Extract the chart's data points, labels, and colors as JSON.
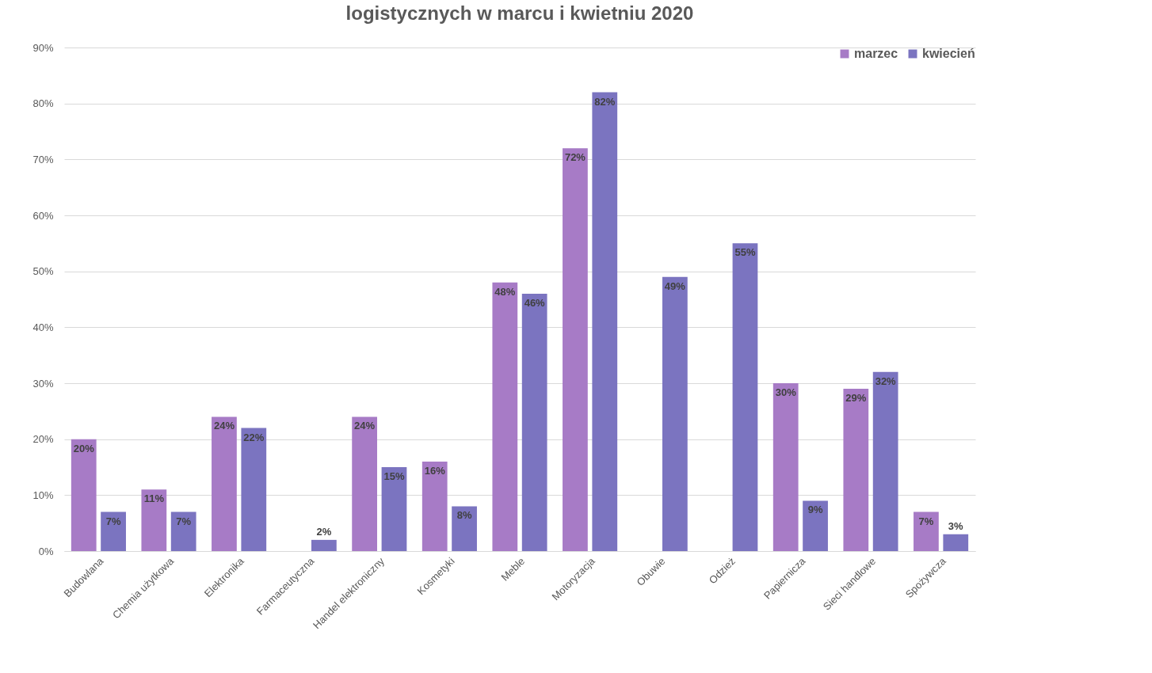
{
  "chart_data": {
    "type": "bar",
    "title": "logistycznych w marcu i kwietniu 2020",
    "categories": [
      "Budowlana",
      "Chemia użytkowa",
      "Elektronika",
      "Farmaceutyczna",
      "Handel elektroniczny",
      "Kosmetyki",
      "Meble",
      "Motoryzacja",
      "Obuwie",
      "Odzież",
      "Papiernicza",
      "Sieci handlowe",
      "Spożywcza"
    ],
    "series": [
      {
        "name": "marzec",
        "color": "#a77bc6",
        "values": [
          20,
          11,
          24,
          null,
          24,
          16,
          48,
          72,
          null,
          null,
          30,
          29,
          7
        ],
        "value_labels": [
          "20%",
          "11%",
          "24%",
          null,
          "24%",
          "16%",
          "48%",
          "72%",
          null,
          null,
          "30%",
          "29%",
          "7%"
        ]
      },
      {
        "name": "kwiecień",
        "color": "#7b74c0",
        "values": [
          7,
          7,
          22,
          2,
          15,
          8,
          46,
          82,
          49,
          55,
          9,
          32,
          3
        ],
        "value_labels": [
          "7%",
          "7%",
          "22%",
          "2%",
          "15%",
          "8%",
          "46%",
          "82%",
          "49%",
          "55%",
          "9%",
          "32%",
          "3%"
        ]
      }
    ],
    "ylim": [
      0,
      90
    ],
    "yticks": [
      {
        "value": 0,
        "label": "0%"
      },
      {
        "value": 10,
        "label": "10%"
      },
      {
        "value": 20,
        "label": "20%"
      },
      {
        "value": 30,
        "label": "30%"
      },
      {
        "value": 40,
        "label": "40%"
      },
      {
        "value": 50,
        "label": "50%"
      },
      {
        "value": 60,
        "label": "60%"
      },
      {
        "value": 70,
        "label": "70%"
      },
      {
        "value": 80,
        "label": "80%"
      },
      {
        "value": 90,
        "label": "90%"
      }
    ],
    "grid": "y",
    "legend": "top right"
  }
}
